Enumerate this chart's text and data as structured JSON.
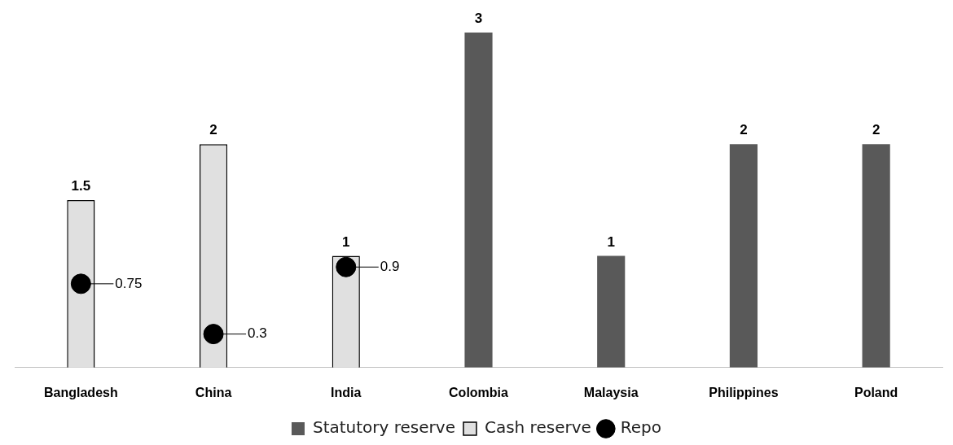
{
  "chart_data": {
    "type": "bar",
    "categories": [
      "Bangladesh",
      "China",
      "India",
      "Colombia",
      "Malaysia",
      "Philippines",
      "Poland"
    ],
    "series": [
      {
        "name": "Statutory reserve",
        "color": "#595959",
        "values": [
          null,
          null,
          null,
          3,
          1,
          2,
          2
        ]
      },
      {
        "name": "Cash reserve",
        "color": "#e0e0e0",
        "values": [
          1.5,
          2,
          1,
          null,
          null,
          null,
          null
        ]
      },
      {
        "name": "Repo",
        "type": "scatter",
        "color": "#000000",
        "x": [
          "Bangladesh",
          "China",
          "India"
        ],
        "values": [
          0.75,
          0.3,
          0.9
        ]
      }
    ],
    "ylim": [
      0,
      3
    ],
    "tick_labels": "x",
    "grid": false,
    "legend": "bottom",
    "data_labels": true,
    "marker": "circle"
  }
}
